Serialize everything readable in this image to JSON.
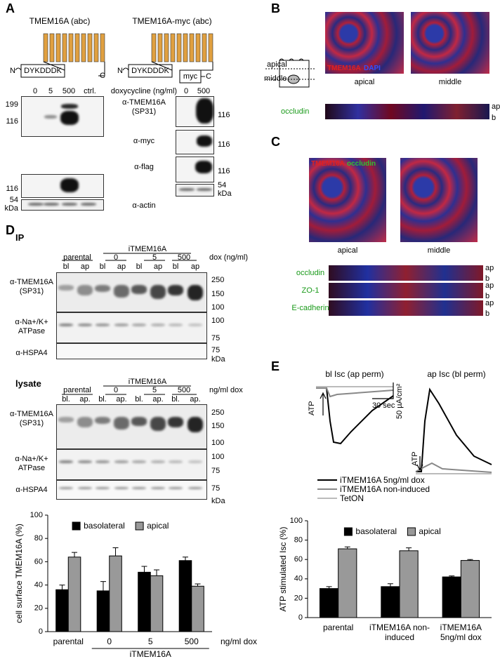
{
  "panel_a": {
    "letter": "A",
    "construct_1": {
      "title": "TMEM16A (abc)",
      "n_term": "N",
      "tag": "DYKDDDK",
      "c_term": "C"
    },
    "construct_2": {
      "title": "TMEM16A-myc (abc)",
      "n_term": "N",
      "tag": "DYKDDDK",
      "myc": "myc",
      "c_term": "C"
    },
    "lanes_left": [
      "0",
      "5",
      "500",
      "ctrl."
    ],
    "dox_label": "doxycycline (ng/ml)",
    "lanes_right": [
      "0",
      "500"
    ],
    "antibodies": [
      "α-TMEM16A (SP31)",
      "α-myc",
      "α-flag",
      "α-actin"
    ],
    "markers_left": [
      "199",
      "116",
      "116",
      "54",
      "kDa"
    ],
    "markers_right": [
      "116",
      "116",
      "116",
      "54",
      "kDa"
    ]
  },
  "panel_b": {
    "letter": "B",
    "schematic": [
      "apical",
      "middle"
    ],
    "stain_1": "TMEM16A",
    "stain_2": "DAPI",
    "images": [
      "apical",
      "middle"
    ],
    "strip": "occludin",
    "strip_ticks": [
      "ap",
      "b"
    ]
  },
  "panel_c": {
    "letter": "C",
    "stain_1": "TMEM16A",
    "stain_2": "occludin",
    "images": [
      "apical",
      "middle"
    ],
    "strips": [
      {
        "label": "occludin",
        "ticks": [
          "ap",
          "b"
        ]
      },
      {
        "label": "ZO-1",
        "ticks": [
          "ap",
          "b"
        ]
      },
      {
        "label": "E-cadherin",
        "ticks": [
          "ap",
          "b"
        ]
      }
    ]
  },
  "panel_d": {
    "letter": "D",
    "ip": {
      "title": "IP",
      "group": "iTMEM16A",
      "parental": "parental",
      "doses": [
        "0",
        "5",
        "500"
      ],
      "dose_unit": "dox (ng/ml)",
      "lanes": [
        "bl",
        "ap",
        "bl",
        "ap",
        "bl",
        "ap",
        "bl",
        "ap"
      ],
      "antibodies": [
        "α-TMEM16A (SP31)",
        "α-Na+/K+ ATPase",
        "α-HSPA4"
      ],
      "markers": [
        "250",
        "150",
        "100",
        "100",
        "75",
        "75",
        "kDa"
      ]
    },
    "lysate": {
      "title": "lysate",
      "group": "iTMEM16A",
      "parental": "parental",
      "doses": [
        "0",
        "5",
        "500"
      ],
      "dose_unit": "ng/ml dox",
      "lanes": [
        "bl.",
        "ap.",
        "bl.",
        "ap.",
        "bl.",
        "ap.",
        "bl.",
        "ap."
      ],
      "antibodies": [
        "α-TMEM16A (SP31)",
        "α-Na+/K+ ATPase",
        "α-HSPA4"
      ],
      "markers": [
        "250",
        "150",
        "100",
        "100",
        "75",
        "75",
        "kDa"
      ]
    }
  },
  "panel_e": {
    "letter": "E",
    "trace_titles": [
      "bl Isc (ap perm)",
      "ap Isc (bl perm)"
    ],
    "stimuli": [
      "ATP",
      "ATP"
    ],
    "scale_time": "30 sec",
    "scale_current": "50 µA/cm²",
    "legend": [
      "iTMEM16A 5ng/ml dox",
      "iTMEM16A non-induced",
      "TetON"
    ]
  },
  "chart_data": [
    {
      "type": "bar",
      "y_label": "cell surface TMEM16A (%)",
      "categories": [
        "parental",
        "0",
        "5",
        "500"
      ],
      "annotation": "ng/ml dox",
      "group_label": "iTMEM16A",
      "series": [
        {
          "name": "basolateral",
          "color": "#000000",
          "values": [
            36,
            35,
            51,
            61
          ],
          "errors": [
            4,
            8,
            5,
            3
          ]
        },
        {
          "name": "apical",
          "color": "#999999",
          "values": [
            64,
            65,
            48,
            39
          ],
          "errors": [
            4,
            7,
            5,
            2
          ]
        }
      ],
      "ylim": [
        0,
        100
      ],
      "yticks": [
        0,
        20,
        40,
        60,
        80,
        100
      ]
    },
    {
      "type": "bar",
      "y_label": "ATP stimulated Isc (%)",
      "categories": [
        "parental",
        "iTMEM16A non-induced",
        "iTMEM16A 5ng/ml dox"
      ],
      "series": [
        {
          "name": "basolateral",
          "color": "#000000",
          "values": [
            30,
            32,
            42
          ],
          "errors": [
            2,
            3,
            1
          ]
        },
        {
          "name": "apical",
          "color": "#999999",
          "values": [
            71,
            69,
            59
          ],
          "errors": [
            2,
            3,
            1
          ]
        }
      ],
      "ylim": [
        0,
        100
      ],
      "yticks": [
        0,
        20,
        40,
        60,
        80,
        100
      ]
    }
  ]
}
